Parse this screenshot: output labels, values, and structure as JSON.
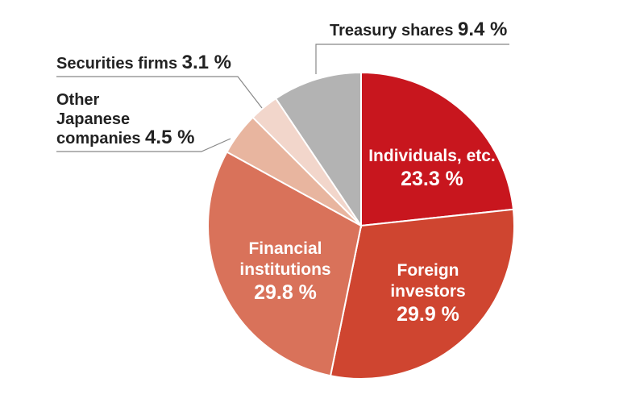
{
  "chart_data": {
    "type": "pie",
    "title": "",
    "unit": "%",
    "slices": [
      {
        "id": "individuals",
        "label": "Individuals, etc.",
        "value": 23.3,
        "value_text": "23.3 %",
        "color": "#c8161e"
      },
      {
        "id": "foreign",
        "label": "Foreign investors",
        "value": 29.9,
        "value_text": "29.9 %",
        "color": "#cf4530"
      },
      {
        "id": "financial",
        "label": "Financial institutions",
        "value": 29.8,
        "value_text": "29.8 %",
        "color": "#d9725a"
      },
      {
        "id": "other-japanese",
        "label": "Other Japanese companies",
        "value": 4.5,
        "value_text": "4.5 %",
        "color": "#e8b59f"
      },
      {
        "id": "securities",
        "label": "Securities firms",
        "value": 3.1,
        "value_text": "3.1 %",
        "color": "#f2d6cb"
      },
      {
        "id": "treasury",
        "label": "Treasury shares",
        "value": 9.4,
        "value_text": "9.4 %",
        "color": "#b3b3b3"
      }
    ],
    "inside_labels": {
      "individuals": [
        "Individuals, etc."
      ],
      "foreign": [
        "Foreign",
        "investors"
      ],
      "financial": [
        "Financial",
        "institutions"
      ]
    },
    "outside_labels": {
      "treasury": [
        "Treasury shares"
      ],
      "securities": [
        "Securities firms"
      ],
      "other-japanese": [
        "Other",
        "Japanese",
        "companies"
      ]
    }
  }
}
